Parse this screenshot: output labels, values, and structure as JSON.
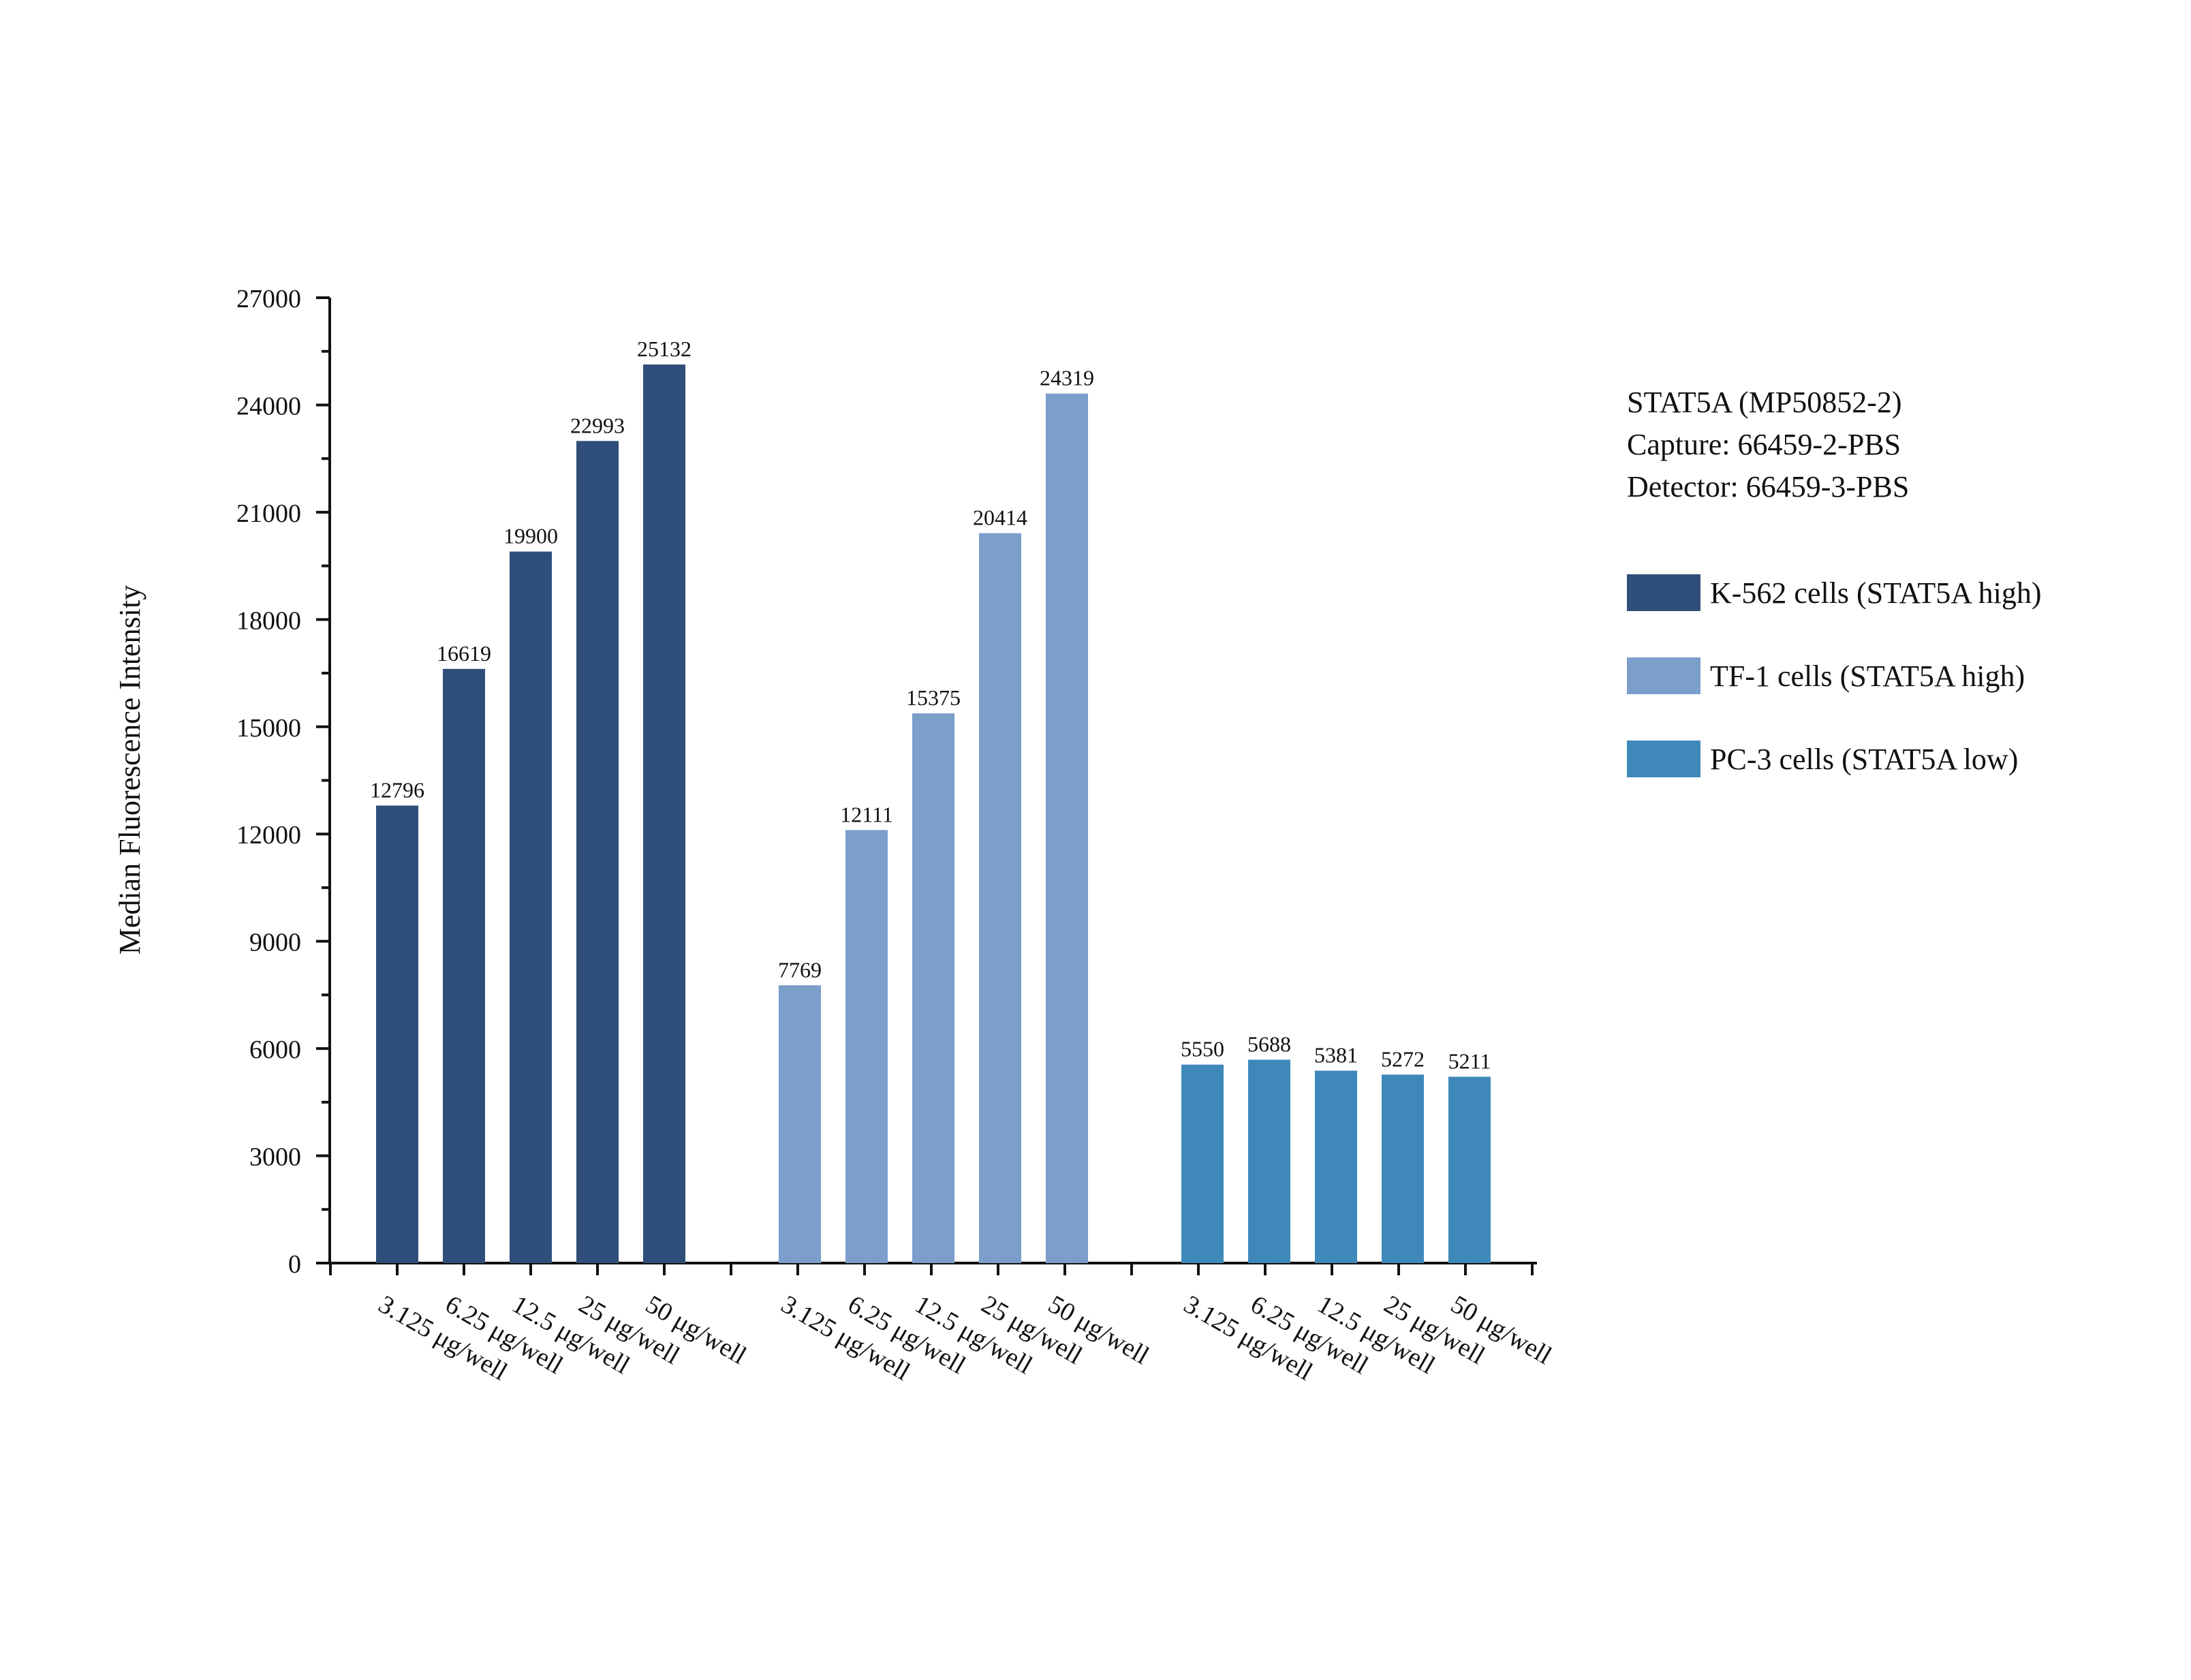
{
  "chart_data": {
    "type": "bar",
    "title": "",
    "xlabel": "",
    "ylabel": "Median Fluorescence Intensity",
    "ylim": [
      0,
      27000
    ],
    "yticks": [
      0,
      3000,
      6000,
      9000,
      12000,
      15000,
      18000,
      21000,
      24000,
      27000
    ],
    "y_minor_step": 1500,
    "grid": false,
    "legend_position": "right",
    "annotation": {
      "lines": [
        "STAT5A (MP50852-2)",
        "Capture: 66459-2-PBS",
        "Detector: 66459-3-PBS"
      ]
    },
    "categories": [
      "3.125 μg/well",
      "6.25 μg/well",
      "12.5 μg/well",
      "25 μg/well",
      "50 μg/well"
    ],
    "series": [
      {
        "name": "K-562 cells (STAT5A high)",
        "color": "#2f4f7a",
        "values": [
          12796,
          16619,
          19900,
          22993,
          25132
        ],
        "labels": [
          "12796",
          "16619",
          "19900",
          "22993",
          "25132"
        ]
      },
      {
        "name": "TF-1 cells (STAT5A high)",
        "color": "#7b9ecb",
        "values": [
          7769,
          12111,
          15375,
          20414,
          24319
        ],
        "labels": [
          "7769",
          "12111",
          "15375",
          "20414",
          "24319"
        ]
      },
      {
        "name": "PC-3 cells (STAT5A low)",
        "color": "#3f89ba",
        "values": [
          5550,
          5688,
          5381,
          5272,
          5211
        ],
        "labels": [
          "5550",
          "5688",
          "5381",
          "5272",
          "5211"
        ]
      }
    ]
  }
}
